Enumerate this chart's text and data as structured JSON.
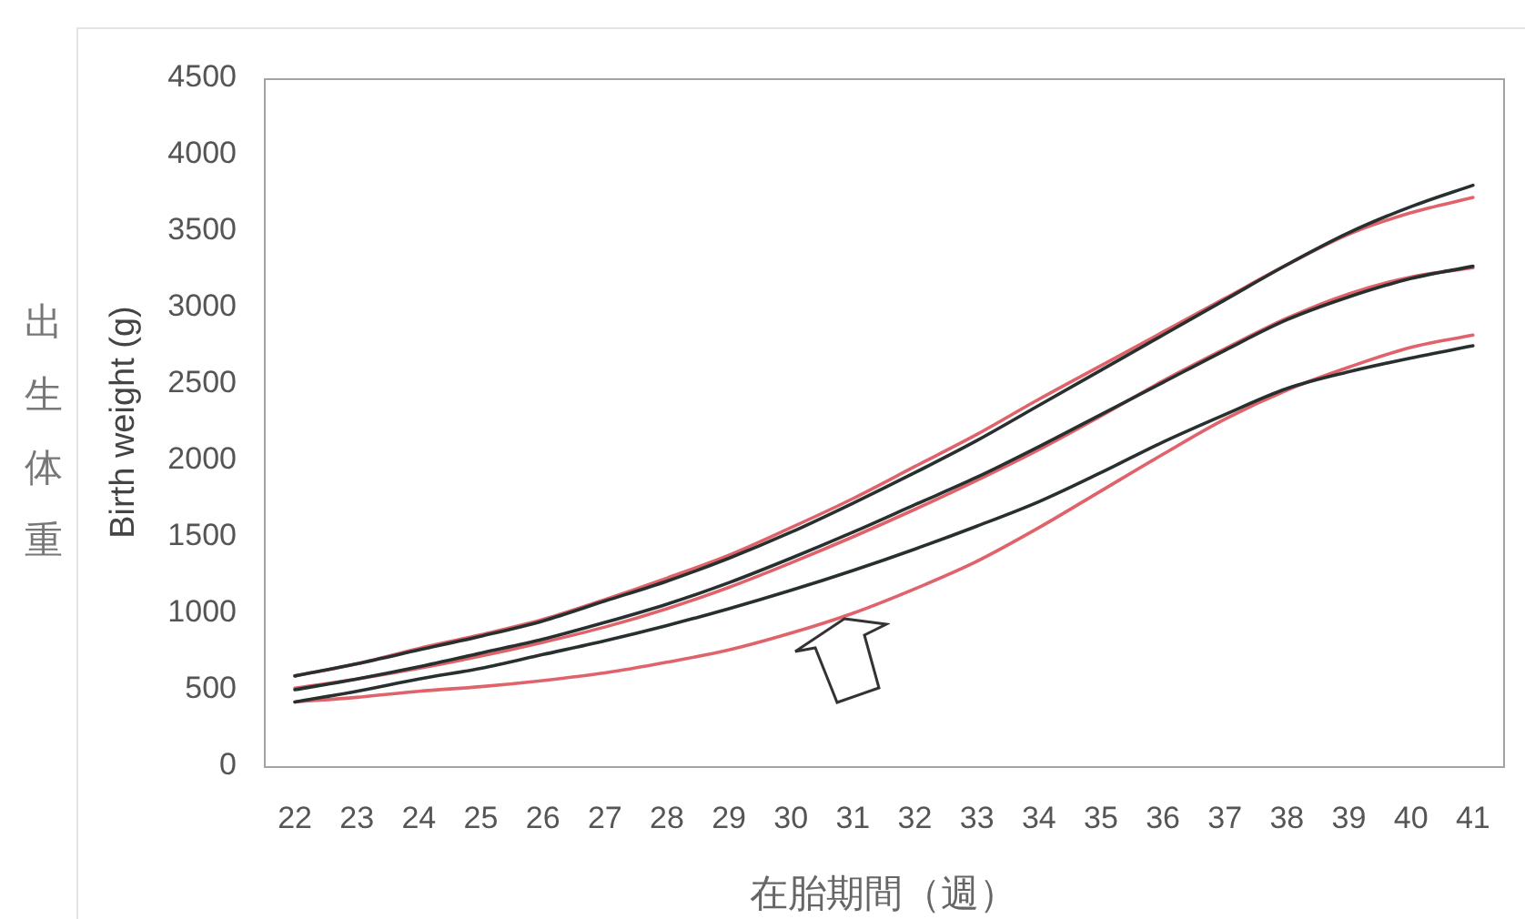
{
  "chart_data": {
    "type": "line",
    "xlabel": "在胎期間（週）",
    "ylabel": "Birth weight (g)",
    "annotations": [
      "出生体重"
    ],
    "categories": [
      "22",
      "23",
      "24",
      "25",
      "26",
      "27",
      "28",
      "29",
      "30",
      "31",
      "32",
      "33",
      "34",
      "35",
      "36",
      "37",
      "38",
      "39",
      "40",
      "41"
    ],
    "series": [
      {
        "color": "#27302e",
        "values": [
          590,
          670,
          760,
          850,
          950,
          1080,
          1210,
          1360,
          1530,
          1720,
          1920,
          2130,
          2360,
          2590,
          2820,
          3050,
          3280,
          3490,
          3660,
          3800
        ]
      },
      {
        "color": "#e0636b",
        "values": [
          590,
          670,
          770,
          860,
          960,
          1090,
          1230,
          1380,
          1560,
          1750,
          1960,
          2170,
          2400,
          2620,
          2840,
          3060,
          3280,
          3480,
          3620,
          3720
        ]
      },
      {
        "color": "#27302e",
        "values": [
          500,
          570,
          650,
          740,
          830,
          940,
          1060,
          1200,
          1360,
          1530,
          1710,
          1890,
          2090,
          2300,
          2510,
          2720,
          2920,
          3070,
          3190,
          3270
        ]
      },
      {
        "color": "#e0636b",
        "values": [
          510,
          570,
          640,
          720,
          810,
          910,
          1030,
          1170,
          1330,
          1500,
          1680,
          1870,
          2070,
          2290,
          2520,
          2730,
          2930,
          3090,
          3200,
          3260
        ]
      },
      {
        "color": "#27302e",
        "values": [
          420,
          490,
          570,
          640,
          730,
          820,
          920,
          1030,
          1150,
          1280,
          1420,
          1570,
          1730,
          1920,
          2120,
          2300,
          2470,
          2580,
          2670,
          2750
        ]
      },
      {
        "color": "#e0636b",
        "values": [
          420,
          450,
          490,
          520,
          560,
          610,
          680,
          760,
          870,
          1000,
          1160,
          1340,
          1560,
          1800,
          2040,
          2270,
          2460,
          2610,
          2740,
          2820
        ]
      }
    ],
    "ylim": [
      0,
      4500
    ],
    "yticks": [
      0,
      500,
      1000,
      1500,
      2000,
      2500,
      3000,
      3500,
      4000,
      4500
    ],
    "grid": false,
    "legend": false,
    "marker": "none",
    "line_style": "solid"
  }
}
